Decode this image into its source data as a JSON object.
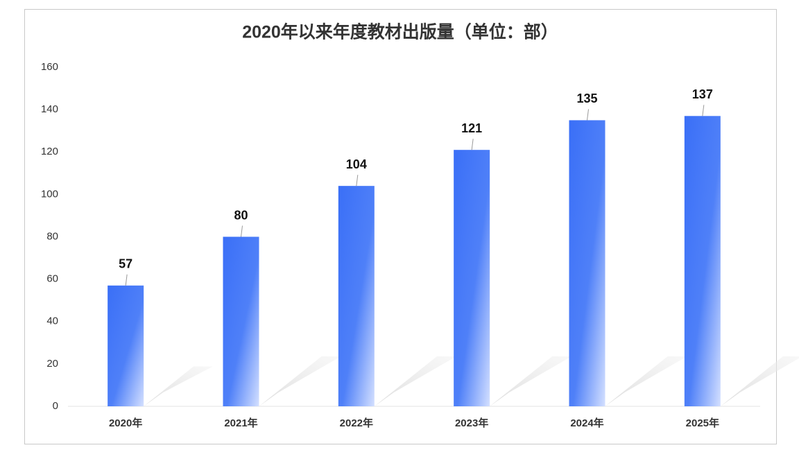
{
  "chart_data": {
    "type": "bar",
    "title": "2020年以来年度教材出版量（单位：部）",
    "categories": [
      "2020年",
      "2021年",
      "2022年",
      "2023年",
      "2024年",
      "2025年"
    ],
    "values": [
      57,
      80,
      104,
      121,
      135,
      137
    ],
    "color": "#3a6ff7",
    "ylim": [
      0,
      160
    ],
    "yticks": [
      0,
      20,
      40,
      60,
      80,
      100,
      120,
      140,
      160
    ],
    "grid": false
  }
}
